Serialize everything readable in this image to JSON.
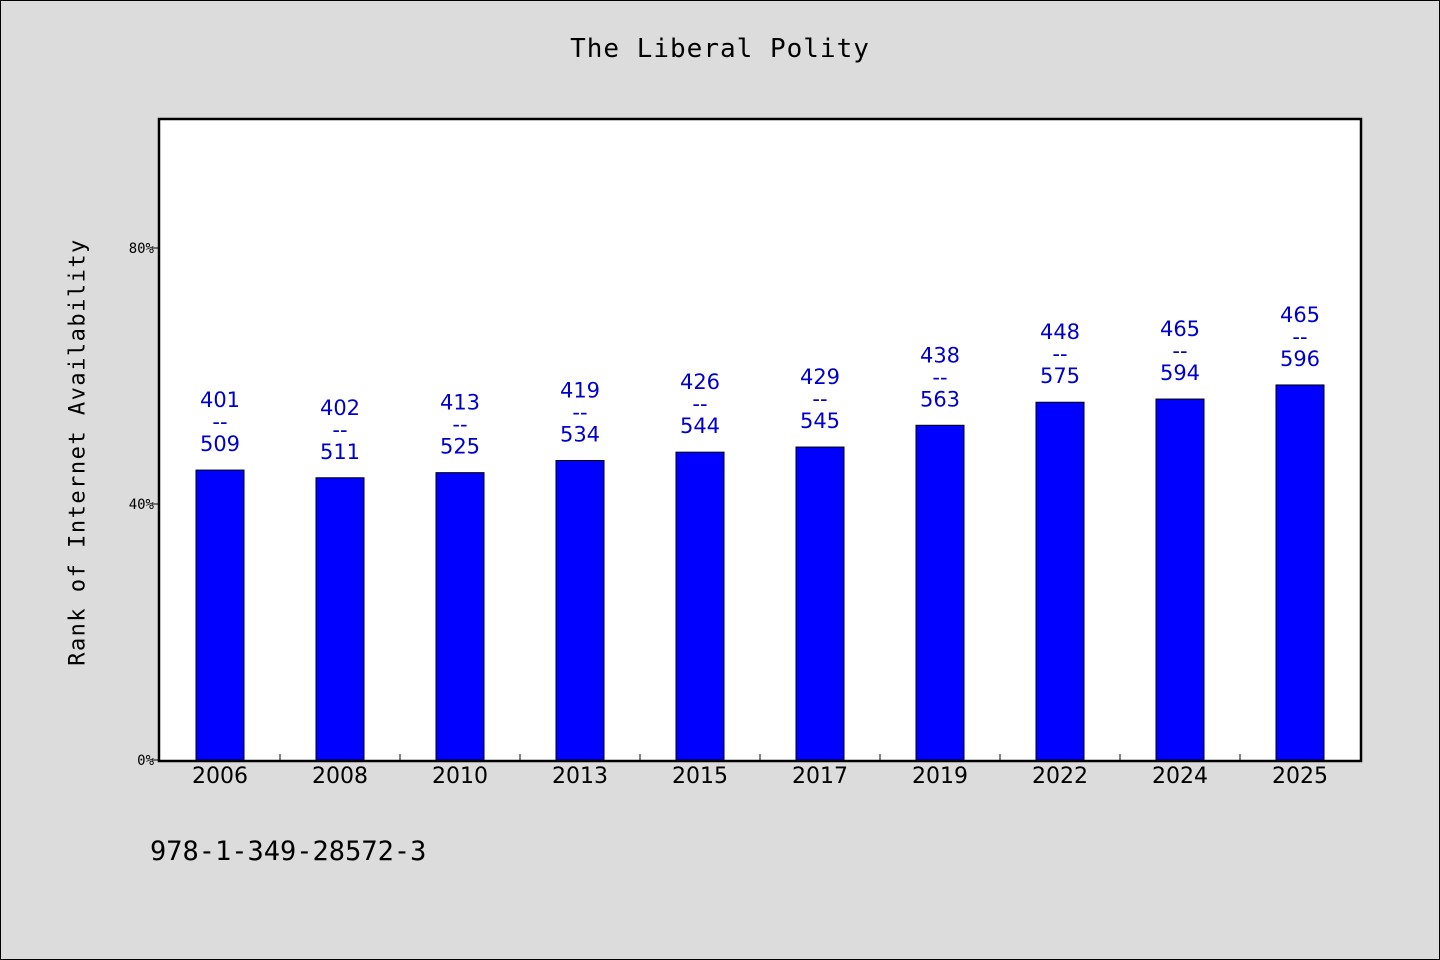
{
  "title": "The Liberal Polity",
  "footer_code": "978-1-349-28572-3",
  "colors": {
    "bar": "#0000ff",
    "label": "#0000cc",
    "plot_bg": "#ffffff",
    "page_bg": "#dcdcdc"
  },
  "chart_data": {
    "type": "bar",
    "title": "The Liberal Polity",
    "xlabel": "",
    "ylabel": "Rank of Internet Availability",
    "ylim": [
      0,
      100
    ],
    "yticks": [
      0,
      40,
      80
    ],
    "ytick_labels": [
      "0%",
      "40%",
      "80%"
    ],
    "grid": false,
    "categories": [
      "2006",
      "2008",
      "2010",
      "2013",
      "2015",
      "2017",
      "2019",
      "2022",
      "2024",
      "2025"
    ],
    "values": [
      45.3,
      44.1,
      44.9,
      46.8,
      48.1,
      48.9,
      52.3,
      55.9,
      56.4,
      58.6
    ],
    "data_labels": [
      {
        "top": "401",
        "sep": "--",
        "bottom": "509"
      },
      {
        "top": "402",
        "sep": "--",
        "bottom": "511"
      },
      {
        "top": "413",
        "sep": "--",
        "bottom": "525"
      },
      {
        "top": "419",
        "sep": "--",
        "bottom": "534"
      },
      {
        "top": "426",
        "sep": "--",
        "bottom": "544"
      },
      {
        "top": "429",
        "sep": "--",
        "bottom": "545"
      },
      {
        "top": "438",
        "sep": "--",
        "bottom": "563"
      },
      {
        "top": "448",
        "sep": "--",
        "bottom": "575"
      },
      {
        "top": "465",
        "sep": "--",
        "bottom": "594"
      },
      {
        "top": "465",
        "sep": "--",
        "bottom": "596"
      }
    ]
  }
}
